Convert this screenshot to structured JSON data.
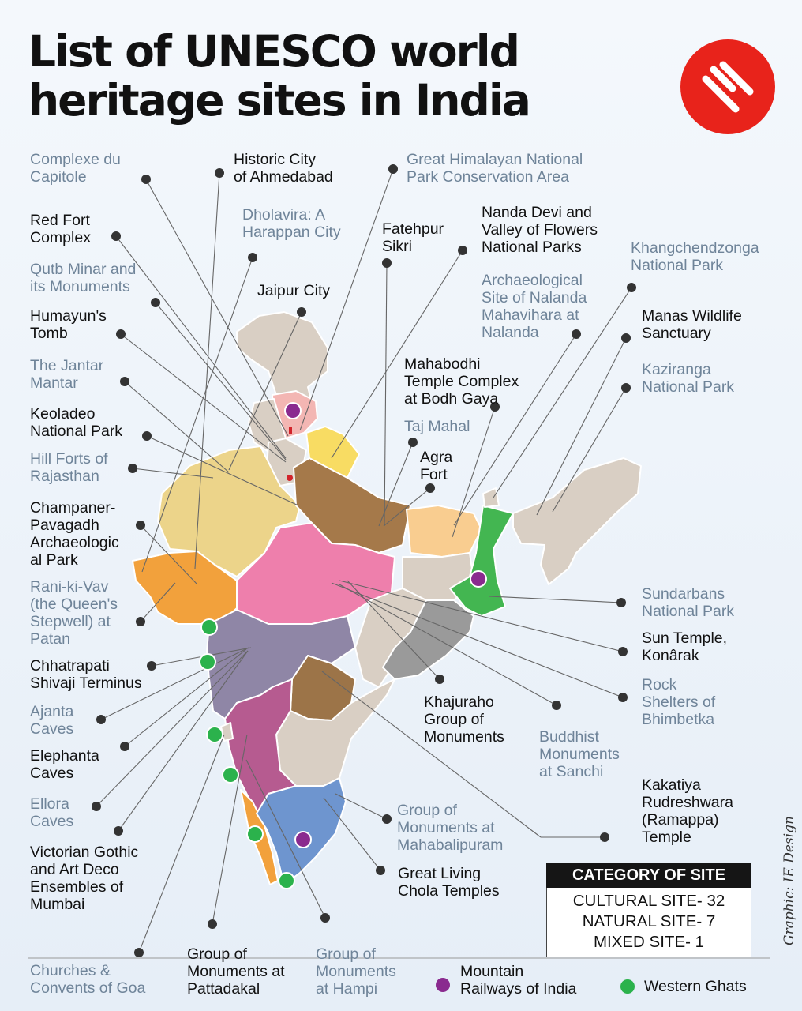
{
  "title": {
    "line1": "List of UNESCO world",
    "line2": "heritage sites in India"
  },
  "logo_icon": "indian-express-logo-icon",
  "colors": {
    "cultural_label": "#111111",
    "natural_label": "#6f8499",
    "logo_red": "#e8231b",
    "mountain_railway_marker": "#8a2a8f",
    "western_ghats_marker": "#2bb24c",
    "background": "#e9f1f8"
  },
  "sites": {
    "complexe_capitole": "Complexe du\nCapitole",
    "ahmedabad": "Historic City\nof Ahmedabad",
    "great_himalayan": "Great Himalayan National\nPark Conservation Area",
    "red_fort": "Red Fort\nComplex",
    "dholavira": "Dholavira: A\nHarappan City",
    "fatehpur_sikri": "Fatehpur\nSikri",
    "nanda_devi": "Nanda Devi and\nValley of Flowers\nNational Parks",
    "khangchendzonga": "Khangchendzonga\nNational Park",
    "qutb_minar": "Qutb Minar and\nits Monuments",
    "jaipur": "Jaipur City",
    "nalanda": "Archaeological\nSite of Nalanda\nMahavihara at\nNalanda",
    "humayun": "Humayun's\nTomb",
    "manas": "Manas Wildlife\nSanctuary",
    "jantar_mantar": "The Jantar\nMantar",
    "mahabodhi": "Mahabodhi\nTemple Complex\nat Bodh Gaya",
    "kaziranga": "Kaziranga\nNational Park",
    "keoladeo": "Keoladeo\nNational Park",
    "taj_mahal": "Taj Mahal",
    "hill_forts": "Hill Forts of\nRajasthan",
    "agra_fort": "Agra\nFort",
    "champaner": "Champaner-\nPavagadh\nArchaeologic\nal Park",
    "rani_ki_vav": "Rani-ki-Vav\n(the Queen's\nStepwell) at\nPatan",
    "sundarbans": "Sundarbans\nNational Park",
    "sun_temple": "Sun Temple,\nKonârak",
    "csmt": "Chhatrapati\nShivaji Terminus",
    "rock_shelters": "Rock\nShelters of\nBhimbetka",
    "ajanta": "Ajanta\nCaves",
    "khajuraho": "Khajuraho\nGroup of\nMonuments",
    "elephanta": "Elephanta\nCaves",
    "sanchi": "Buddhist\nMonuments\nat Sanchi",
    "kakatiya": "Kakatiya\nRudreshwara\n(Ramappa)\nTemple",
    "ellora": "Ellora\nCaves",
    "mahabalipuram": "Group of\nMonuments at\nMahabalipuram",
    "victorian_gothic": "Victorian Gothic\nand Art Deco\nEnsembles of\nMumbai",
    "chola_temples": "Great Living\nChola Temples",
    "churches_goa": "Churches &\nConvents of Goa",
    "pattadakal": "Group of\nMonuments at\nPattadakal",
    "hampi": "Group of\nMonuments\nat Hampi"
  },
  "legend": {
    "heading": "CATEGORY OF SITE",
    "cultural": "CULTURAL SITE- 32",
    "natural": "NATURAL SITE- 7",
    "mixed": "MIXED SITE- 1"
  },
  "marker_key": {
    "mountain_railways": "Mountain\nRailways of India",
    "western_ghats": "Western Ghats"
  },
  "credit": "Graphic: IE Design"
}
